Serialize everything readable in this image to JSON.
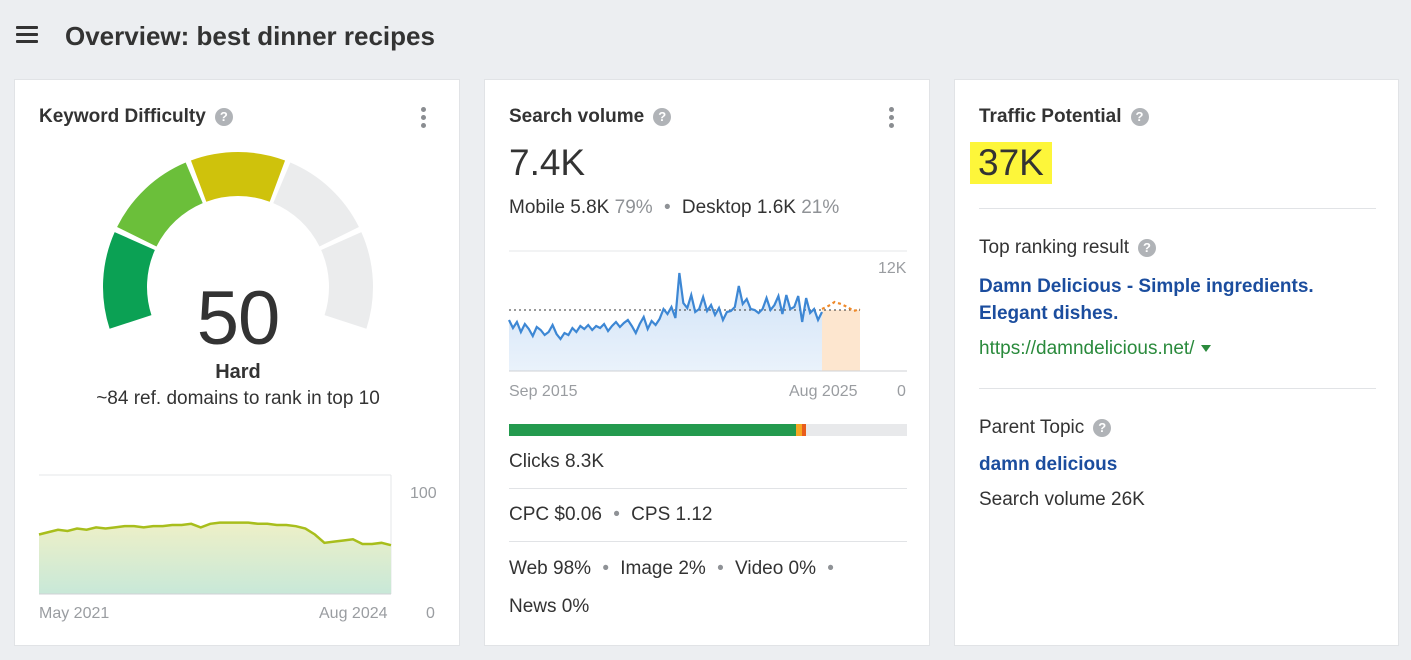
{
  "header": {
    "menu_icon": "hamburger-menu-icon",
    "title": "Overview: best dinner recipes"
  },
  "kd": {
    "title": "Keyword Difficulty",
    "help_icon": "question-circle-icon",
    "menu_icon": "kebab-menu-icon",
    "value": "50",
    "label": "Hard",
    "subtitle": "~84 ref. domains to rank in top 10",
    "gauge_fill_percent": 50,
    "colors": {
      "red": "#0ba154",
      "green": "#6bbf3a",
      "yellow": "#cfc20c",
      "empty": "#ebeced"
    },
    "chart": {
      "x_start": "May 2021",
      "x_end": "Aug 2024",
      "y_max": "100",
      "y_min": "0"
    }
  },
  "sv": {
    "title": "Search volume",
    "help_icon": "question-circle-icon",
    "menu_icon": "kebab-menu-icon",
    "value": "7.4K",
    "mobile_label": "Mobile 5.8K",
    "mobile_pct": "79%",
    "desktop_label": "Desktop 1.6K",
    "desktop_pct": "21%",
    "chart": {
      "y_max": "12K",
      "y_min": "0",
      "x_start": "Sep 2015",
      "x_end": "Aug 2025"
    },
    "clicks_bar": {
      "organic_pct": 72,
      "colors": {
        "organic": "#239a4e",
        "paid": "#f6a623",
        "other": "#e85c1c",
        "empty": "#e8e9eb"
      }
    },
    "clicks": "Clicks 8.3K",
    "cpc": "CPC $0.06",
    "cps": "CPS 1.12",
    "web": "Web 98%",
    "image": "Image 2%",
    "video": "Video 0%",
    "news": "News 0%"
  },
  "tp": {
    "title": "Traffic Potential",
    "help_icon": "question-circle-icon",
    "value": "37K",
    "top_ranking_label": "Top ranking result",
    "top_ranking_title_line1": "Damn Delicious - Simple ingredients.",
    "top_ranking_title_line2": "Elegant dishes.",
    "top_ranking_url": "https://damndelicious.net/",
    "parent_topic_label": "Parent Topic",
    "parent_topic": "damn delicious",
    "parent_search_volume": "Search volume 26K"
  },
  "chart_data": [
    {
      "type": "area",
      "title": "",
      "x_range": [
        "May 2021",
        "Aug 2024"
      ],
      "ylim": [
        0,
        100
      ],
      "series": [
        {
          "values": [
            50,
            52,
            54,
            53,
            55,
            54,
            56,
            55,
            56,
            57,
            57,
            56,
            57,
            57,
            58,
            58,
            59,
            56,
            59,
            60,
            60,
            60,
            60,
            59,
            59,
            58,
            58,
            57,
            55,
            50,
            43,
            44,
            45,
            46,
            42,
            42,
            43,
            41
          ]
        }
      ]
    },
    {
      "type": "line",
      "title": "",
      "x_range": [
        "Sep 2015",
        "Aug 2025"
      ],
      "ylim": [
        0,
        12000
      ],
      "reference_line": 6100,
      "series": [
        {
          "values": [
            5100,
            4300,
            4900,
            3900,
            4700,
            4200,
            3500,
            4400,
            4100,
            3600,
            3900,
            4600,
            3700,
            3200,
            3800,
            3600,
            4300,
            3900,
            4500,
            4200,
            4600,
            4100,
            4500,
            4300,
            4700,
            4000,
            4500,
            4900,
            4400,
            4800,
            5100,
            4500,
            3800,
            4700,
            5400,
            4200,
            5000,
            4600,
            5200,
            6200,
            5700,
            6400,
            5300,
            9800,
            6800,
            6300,
            7600,
            5900,
            6200,
            7400,
            6000,
            6600,
            5600,
            6300,
            5100,
            5900,
            6000,
            6400,
            8500,
            6700,
            7200,
            6200,
            6100,
            5800,
            6200,
            7300,
            6100,
            6600,
            7500,
            5700,
            7600,
            6200,
            6400,
            7500,
            4900,
            7300,
            5800,
            6200,
            5100,
            5900
          ]
        },
        {
          "values": [
            6200,
            6500,
            6900,
            6700,
            6400,
            6000,
            6200
          ]
        }
      ]
    }
  ]
}
